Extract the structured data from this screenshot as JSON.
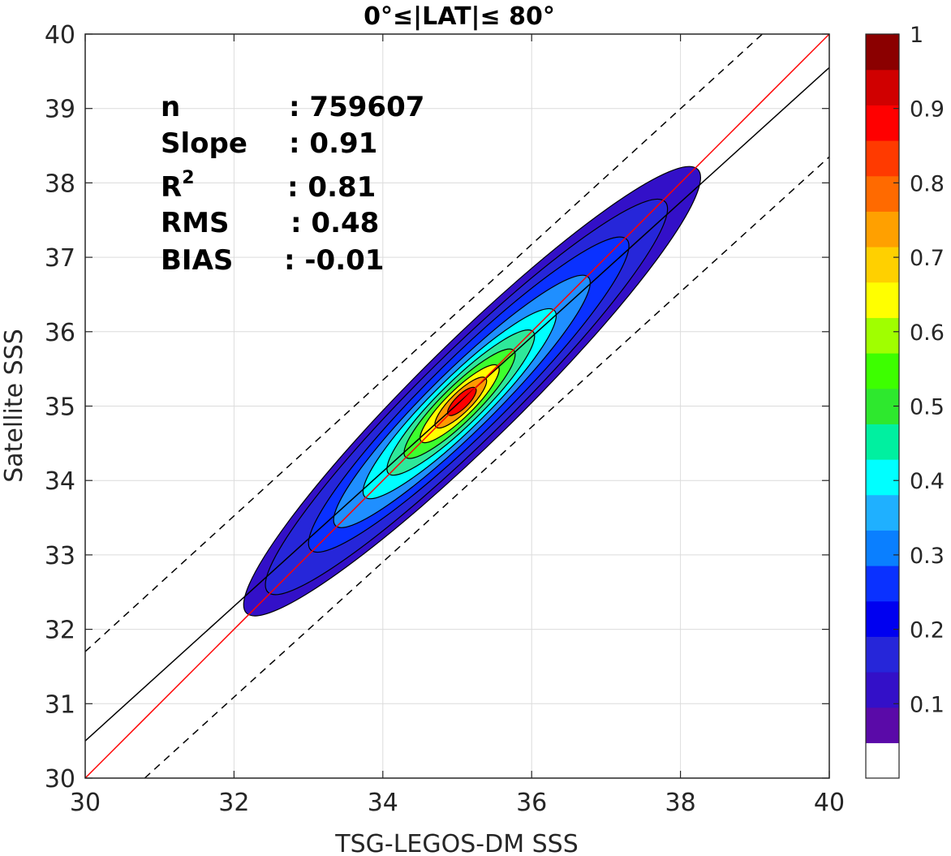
{
  "chart_data": {
    "type": "contour-density-scatter",
    "title": "0°≤|LAT|≤ 80°",
    "xlabel": "TSG-LEGOS-DM SSS",
    "ylabel": "Satellite SSS",
    "xlim": [
      30,
      40
    ],
    "ylim": [
      30,
      40
    ],
    "xticks": [
      "30",
      "32",
      "34",
      "36",
      "38",
      "40"
    ],
    "yticks": [
      "30",
      "31",
      "32",
      "33",
      "34",
      "35",
      "36",
      "37",
      "38",
      "39",
      "40"
    ],
    "grid": true,
    "stats": [
      {
        "label": "n",
        "value": ": 759607"
      },
      {
        "label": "Slope",
        "value": ": 0.91"
      },
      {
        "label": "R",
        "sup": "2",
        "value": ": 0.81"
      },
      {
        "label": "RMS",
        "value": ": 0.48"
      },
      {
        "label": "BIAS",
        "value": ": -0.01"
      }
    ],
    "lines": {
      "one_to_one": {
        "color": "#ff0000",
        "points": [
          [
            30,
            30
          ],
          [
            40,
            40
          ]
        ]
      },
      "regression": {
        "color": "#000000",
        "points": [
          [
            30,
            30.5
          ],
          [
            40,
            39.55
          ]
        ]
      },
      "upper_bound": {
        "style": "dashed",
        "points": [
          [
            30,
            31.7
          ],
          [
            39.1,
            40
          ]
        ]
      },
      "lower_bound": {
        "style": "dashed",
        "points": [
          [
            30.8,
            30
          ],
          [
            40,
            38.35
          ]
        ]
      }
    },
    "density": {
      "center": [
        35.2,
        35.2
      ],
      "levels": [
        0.05,
        0.1,
        0.2,
        0.3,
        0.4,
        0.5,
        0.6,
        0.7,
        0.8,
        0.9
      ],
      "colors": [
        "#3310c8",
        "#2626d9",
        "#0a31ff",
        "#1f8fff",
        "#00ffff",
        "#2ee89a",
        "#3dff2e",
        "#ffff00",
        "#ff9900",
        "#ff0000"
      ]
    },
    "colorbar": {
      "range": [
        0,
        1
      ],
      "ticks": [
        "0.1",
        "0.2",
        "0.3",
        "0.4",
        "0.5",
        "0.6",
        "0.7",
        "0.8",
        "0.9",
        "1"
      ],
      "colors": [
        "#ffffff",
        "#5a0aa8",
        "#3310c8",
        "#2626d9",
        "#0000f0",
        "#0a31ff",
        "#0a7fff",
        "#1fb0ff",
        "#00ffff",
        "#00f0a0",
        "#2ee82e",
        "#3dff00",
        "#a0ff00",
        "#ffff00",
        "#ffd000",
        "#ffa000",
        "#ff6a00",
        "#ff3a00",
        "#ff0000",
        "#d00000",
        "#8b0000"
      ]
    }
  }
}
